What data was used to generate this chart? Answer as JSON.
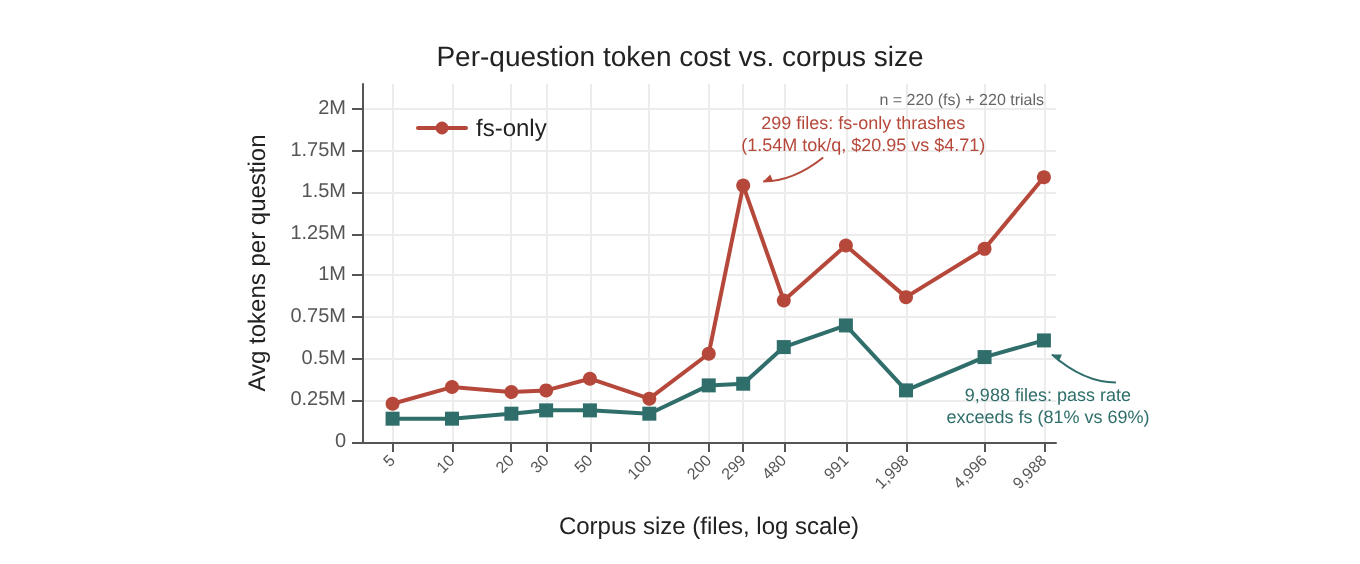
{
  "chart_data": {
    "type": "line",
    "title": "Per-question token cost vs. corpus size",
    "xlabel": "Corpus size (files, log scale)",
    "ylabel": "Avg tokens per question",
    "x": [
      5,
      10,
      20,
      30,
      50,
      100,
      200,
      299,
      480,
      991,
      1998,
      4996,
      9988
    ],
    "series": [
      {
        "name": "fs-only",
        "color": "#b5483a",
        "marker": "circle",
        "values": [
          0.23,
          0.33,
          0.3,
          0.31,
          0.38,
          0.26,
          0.53,
          1.54,
          0.85,
          1.18,
          0.87,
          1.16,
          1.59
        ]
      },
      {
        "color": "#2f6e6a",
        "marker": "square",
        "values": [
          0.14,
          0.14,
          0.17,
          0.19,
          0.19,
          0.17,
          0.34,
          0.35,
          0.57,
          0.7,
          0.31,
          0.51,
          0.61
        ]
      }
    ],
    "log": "x",
    "xlim": [
      3.5,
      11500
    ],
    "xticks": [
      5,
      10,
      20,
      30,
      50,
      100,
      200,
      299,
      480,
      991,
      {
        "value": 1998,
        "label": "1,998"
      },
      {
        "value": 4996,
        "label": "4,996"
      },
      {
        "value": 9988,
        "label": "9,988"
      }
    ],
    "ylim": [
      0,
      2.15
    ],
    "yticks": [
      0,
      {
        "value": 0.25,
        "label": "0.25M"
      },
      {
        "value": 0.5,
        "label": "0.5M"
      },
      {
        "value": 0.75,
        "label": "0.75M"
      },
      {
        "value": 1,
        "label": "1M"
      },
      {
        "value": 1.25,
        "label": "1.25M"
      },
      {
        "value": 1.5,
        "label": "1.5M"
      },
      {
        "value": 1.75,
        "label": "1.75M"
      },
      {
        "value": 2,
        "label": "2M"
      }
    ],
    "grid": true,
    "legend": "top left",
    "line_style": "solid",
    "annotations": [
      {
        "text": "299 files: fs-only thrashes\n(1.54M tok/q, $20.95 vs $4.71)",
        "x": 299,
        "y": 1.54
      },
      {
        "text": "9,988 files: pass rate\nexceeds fs (81% vs 69%)",
        "x": 9988,
        "y": 0.61
      },
      "n = 220 (fs) + 220 trials"
    ]
  }
}
